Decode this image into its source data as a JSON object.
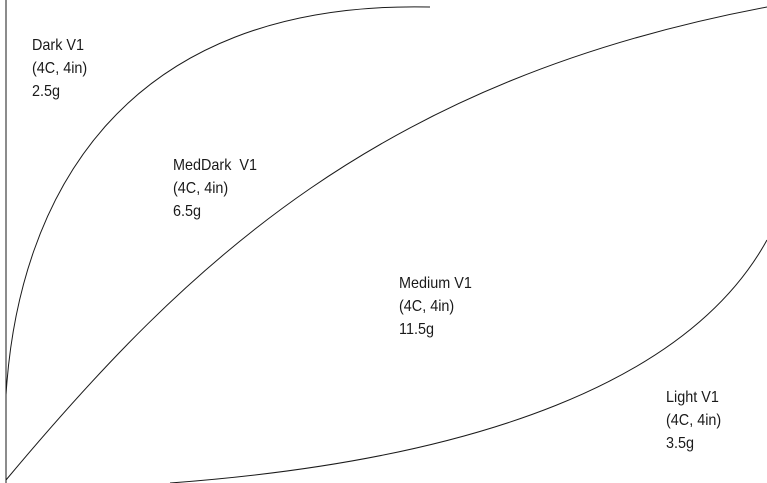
{
  "curves": [
    {
      "name": "Dark V1",
      "spec": "(4C, 4in)",
      "weight": "2.5g"
    },
    {
      "name": "MedDark  V1",
      "spec": "(4C, 4in)",
      "weight": "6.5g"
    },
    {
      "name": "Medium V1",
      "spec": "(4C, 4in)",
      "weight": "11.5g"
    },
    {
      "name": "Light V1",
      "spec": "(4C, 4in)",
      "weight": "3.5g"
    }
  ],
  "colors": {
    "stroke": "#1a1a1a",
    "background": "#ffffff"
  }
}
